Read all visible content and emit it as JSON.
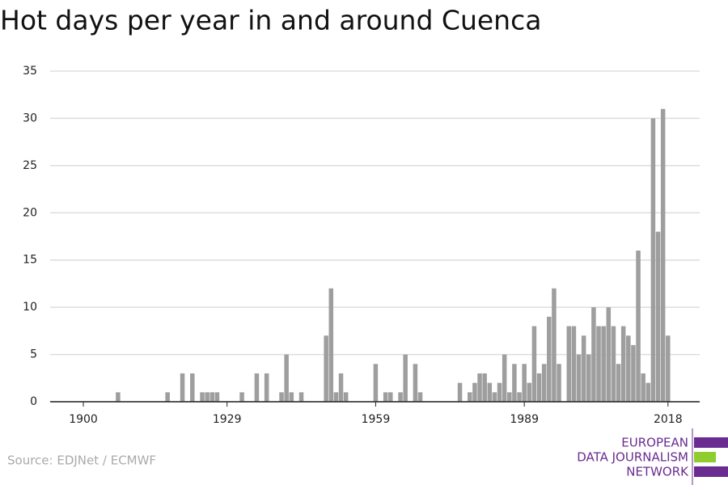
{
  "chart_data": {
    "type": "bar",
    "title": "Hot days per year in and around Cuenca",
    "source": "Source: EDJNet / ECMWF",
    "logo": [
      "EUROPEAN",
      "DATA JOURNALISM",
      "NETWORK"
    ],
    "color": "#9e9e9e",
    "grid": true,
    "x": [
      1900,
      1901,
      1902,
      1903,
      1904,
      1905,
      1906,
      1907,
      1908,
      1909,
      1910,
      1911,
      1912,
      1913,
      1914,
      1915,
      1916,
      1917,
      1918,
      1919,
      1920,
      1921,
      1922,
      1923,
      1924,
      1925,
      1926,
      1927,
      1928,
      1929,
      1930,
      1931,
      1932,
      1933,
      1934,
      1935,
      1936,
      1937,
      1938,
      1939,
      1940,
      1941,
      1942,
      1943,
      1944,
      1945,
      1946,
      1947,
      1948,
      1949,
      1950,
      1951,
      1952,
      1953,
      1954,
      1955,
      1956,
      1957,
      1958,
      1959,
      1960,
      1961,
      1962,
      1963,
      1964,
      1965,
      1966,
      1967,
      1968,
      1969,
      1970,
      1971,
      1972,
      1973,
      1974,
      1975,
      1976,
      1977,
      1978,
      1979,
      1980,
      1981,
      1982,
      1983,
      1984,
      1985,
      1986,
      1987,
      1988,
      1989,
      1990,
      1991,
      1992,
      1993,
      1994,
      1995,
      1996,
      1997,
      1998,
      1999,
      2000,
      2001,
      2002,
      2003,
      2004,
      2005,
      2006,
      2007,
      2008,
      2009,
      2010,
      2011,
      2012,
      2013,
      2014,
      2015,
      2016,
      2017,
      2018
    ],
    "values": [
      0,
      0,
      0,
      0,
      0,
      0,
      0,
      1,
      0,
      0,
      0,
      0,
      0,
      0,
      0,
      0,
      0,
      1,
      0,
      0,
      3,
      0,
      3,
      0,
      1,
      1,
      1,
      1,
      0,
      0,
      0,
      0,
      1,
      0,
      0,
      3,
      0,
      3,
      0,
      0,
      1,
      5,
      1,
      0,
      1,
      0,
      0,
      0,
      0,
      7,
      12,
      1,
      3,
      1,
      0,
      0,
      0,
      0,
      0,
      4,
      0,
      1,
      1,
      0,
      1,
      5,
      0,
      4,
      1,
      0,
      0,
      0,
      0,
      0,
      0,
      0,
      2,
      0,
      1,
      2,
      3,
      3,
      2,
      1,
      2,
      5,
      1,
      4,
      1,
      4,
      2,
      8,
      3,
      4,
      9,
      12,
      4,
      0,
      8,
      8,
      5,
      7,
      5,
      10,
      8,
      8,
      10,
      8,
      4,
      8,
      7,
      6,
      16,
      3,
      2,
      30,
      18,
      31,
      7
    ],
    "xlim": [
      1893.3,
      2024.4
    ],
    "xticks": [
      1900,
      1929,
      1959,
      1989,
      2018
    ],
    "ylim": [
      0,
      35
    ],
    "yticks": [
      0,
      5,
      10,
      15,
      20,
      25,
      30,
      35
    ]
  }
}
